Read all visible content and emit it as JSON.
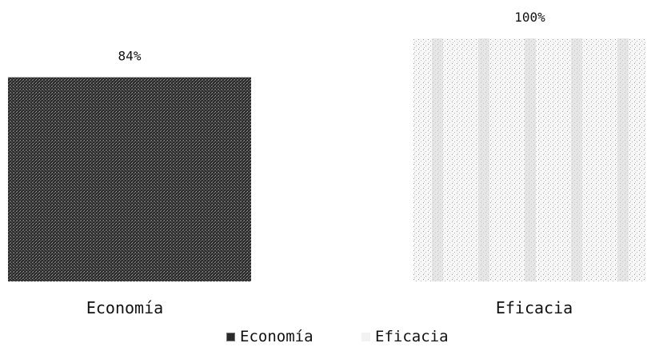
{
  "chart_data": {
    "type": "bar",
    "title": "",
    "xlabel": "",
    "ylabel": "",
    "categories": [
      "Economía",
      "Eficacia"
    ],
    "values": [
      84,
      100
    ],
    "data_labels": [
      "84%",
      "100%"
    ],
    "ylim": [
      0,
      100
    ],
    "grid": false,
    "legend_placement": "bottom",
    "legend": [
      {
        "label": "Economía",
        "icon": "dark-speckled-swatch"
      },
      {
        "label": "Eficacia",
        "icon": "light-speckled-swatch"
      }
    ],
    "colors": [
      "#2b2b2b",
      "#eeeeee"
    ]
  }
}
